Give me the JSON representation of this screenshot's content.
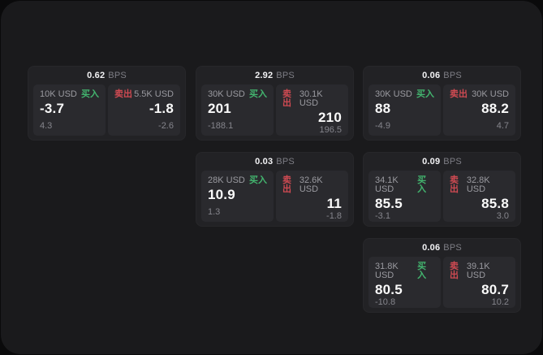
{
  "labels": {
    "bps": "BPS",
    "buy": "买入",
    "sell": "卖出"
  },
  "colors": {
    "buy": "#43b56f",
    "sell": "#cf4a52",
    "window_bg": "#1a1a1c",
    "card_bg": "#222225",
    "tile_bg": "#2a2a2e"
  },
  "cards": [
    {
      "bps": "0.62",
      "buy": {
        "size": "10K USD",
        "price": "-3.7",
        "delta": "4.3"
      },
      "sell": {
        "size": "5.5K USD",
        "price": "-1.8",
        "delta": "-2.6"
      }
    },
    {
      "bps": "2.92",
      "buy": {
        "size": "30K USD",
        "price": "201",
        "delta": "-188.1"
      },
      "sell": {
        "size": "30.1K USD",
        "price": "210",
        "delta": "196.5"
      }
    },
    {
      "bps": "0.06",
      "buy": {
        "size": "30K USD",
        "price": "88",
        "delta": "-4.9"
      },
      "sell": {
        "size": "30K USD",
        "price": "88.2",
        "delta": "4.7"
      }
    },
    {
      "bps": "0.03",
      "buy": {
        "size": "28K USD",
        "price": "10.9",
        "delta": "1.3"
      },
      "sell": {
        "size": "32.6K USD",
        "price": "11",
        "delta": "-1.8"
      }
    },
    {
      "bps": "0.09",
      "buy": {
        "size": "34.1K USD",
        "price": "85.5",
        "delta": "-3.1"
      },
      "sell": {
        "size": "32.8K USD",
        "price": "85.8",
        "delta": "3.0"
      }
    },
    {
      "bps": "0.06",
      "buy": {
        "size": "31.8K USD",
        "price": "80.5",
        "delta": "-10.8"
      },
      "sell": {
        "size": "39.1K USD",
        "price": "80.7",
        "delta": "10.2"
      }
    }
  ]
}
